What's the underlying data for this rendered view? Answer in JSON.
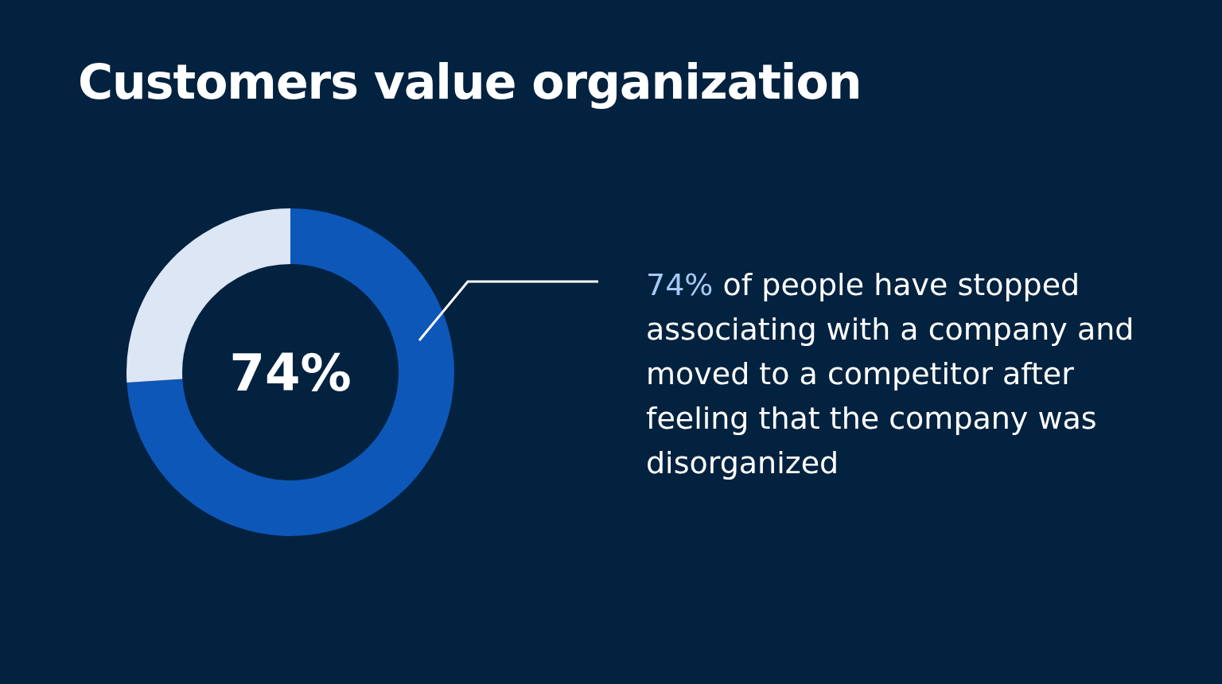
{
  "chart_data": {
    "type": "donut",
    "title": "Customers value organization",
    "categories": [
      null,
      null
    ],
    "values": [
      74,
      26
    ],
    "colors": [
      "#0d57b8",
      "#dce6f5"
    ],
    "value_labels": [
      "74%",
      null
    ],
    "annotations": [
      "74% of people have stopped associating with a company and moved to a competitor after feeling that the company was disorganized"
    ]
  }
}
